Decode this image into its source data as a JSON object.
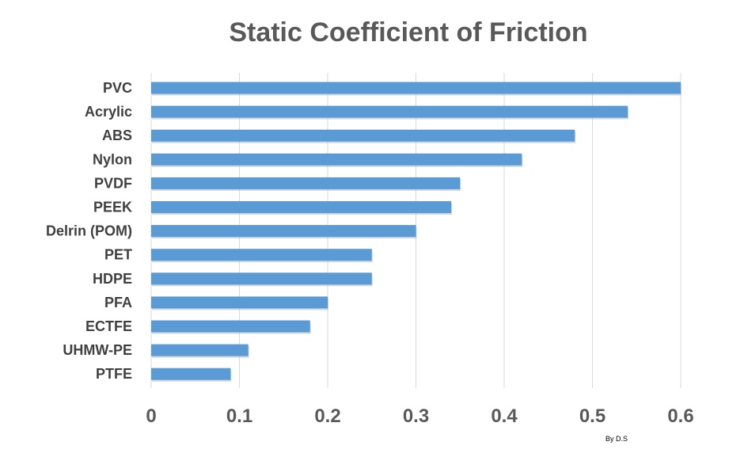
{
  "chart_data": {
    "type": "bar",
    "orientation": "horizontal",
    "title": "Static Coefficient of Friction",
    "categories": [
      "PVC",
      "Acrylic",
      "ABS",
      "Nylon",
      "PVDF",
      "PEEK",
      "Delrin (POM)",
      "PET",
      "HDPE",
      "PFA",
      "ECTFE",
      "UHMW-PE",
      "PTFE"
    ],
    "values": [
      0.6,
      0.54,
      0.48,
      0.42,
      0.35,
      0.34,
      0.3,
      0.25,
      0.25,
      0.2,
      0.18,
      0.11,
      0.09
    ],
    "xticks": [
      "0",
      "0.1",
      "0.2",
      "0.3",
      "0.4",
      "0.5",
      "0.6"
    ],
    "xlim": [
      0,
      0.6
    ],
    "grid": true,
    "legend": "none",
    "bar_color": "#5b9bd5",
    "xlabel": "",
    "ylabel": ""
  },
  "credit": "By D.S"
}
